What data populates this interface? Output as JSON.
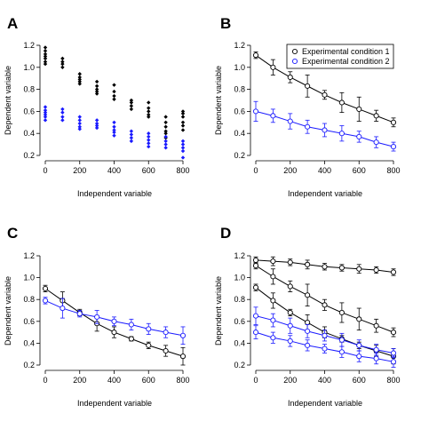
{
  "chart_data": [
    {
      "panel": "A",
      "type": "scatter",
      "xlabel": "Independent variable",
      "ylabel": "Dependent variable",
      "xlim": [
        0,
        800
      ],
      "ylim": [
        0.2,
        1.2
      ],
      "xticks": [
        0,
        200,
        400,
        600,
        800
      ],
      "yticks": [
        0.2,
        0.4,
        0.6,
        0.8,
        1.0,
        1.2
      ],
      "series": [
        {
          "color": "#000000",
          "points": [
            [
              0,
              1.18
            ],
            [
              0,
              1.15
            ],
            [
              0,
              1.12
            ],
            [
              0,
              1.1
            ],
            [
              0,
              1.08
            ],
            [
              0,
              1.05
            ],
            [
              0,
              1.03
            ],
            [
              100,
              1.08
            ],
            [
              100,
              1.05
            ],
            [
              100,
              1.03
            ],
            [
              100,
              1.0
            ],
            [
              200,
              0.94
            ],
            [
              200,
              0.91
            ],
            [
              200,
              0.89
            ],
            [
              200,
              0.87
            ],
            [
              200,
              0.85
            ],
            [
              300,
              0.87
            ],
            [
              300,
              0.83
            ],
            [
              300,
              0.8
            ],
            [
              300,
              0.78
            ],
            [
              300,
              0.76
            ],
            [
              400,
              0.84
            ],
            [
              400,
              0.78
            ],
            [
              400,
              0.74
            ],
            [
              400,
              0.71
            ],
            [
              500,
              0.7
            ],
            [
              500,
              0.68
            ],
            [
              500,
              0.65
            ],
            [
              500,
              0.62
            ],
            [
              600,
              0.68
            ],
            [
              600,
              0.63
            ],
            [
              600,
              0.6
            ],
            [
              600,
              0.57
            ],
            [
              600,
              0.55
            ],
            [
              700,
              0.55
            ],
            [
              700,
              0.5
            ],
            [
              700,
              0.46
            ],
            [
              700,
              0.42
            ],
            [
              700,
              0.4
            ],
            [
              700,
              0.36
            ],
            [
              800,
              0.6
            ],
            [
              800,
              0.58
            ],
            [
              800,
              0.55
            ],
            [
              800,
              0.5
            ],
            [
              800,
              0.47
            ],
            [
              800,
              0.43
            ]
          ]
        },
        {
          "color": "#1a1aff",
          "points": [
            [
              0,
              0.64
            ],
            [
              0,
              0.61
            ],
            [
              0,
              0.59
            ],
            [
              0,
              0.57
            ],
            [
              0,
              0.55
            ],
            [
              0,
              0.52
            ],
            [
              100,
              0.62
            ],
            [
              100,
              0.59
            ],
            [
              100,
              0.55
            ],
            [
              100,
              0.52
            ],
            [
              200,
              0.55
            ],
            [
              200,
              0.52
            ],
            [
              200,
              0.49
            ],
            [
              200,
              0.46
            ],
            [
              200,
              0.44
            ],
            [
              300,
              0.52
            ],
            [
              300,
              0.49
            ],
            [
              300,
              0.47
            ],
            [
              300,
              0.45
            ],
            [
              400,
              0.5
            ],
            [
              400,
              0.46
            ],
            [
              400,
              0.43
            ],
            [
              400,
              0.41
            ],
            [
              400,
              0.38
            ],
            [
              500,
              0.42
            ],
            [
              500,
              0.39
            ],
            [
              500,
              0.36
            ],
            [
              500,
              0.33
            ],
            [
              600,
              0.4
            ],
            [
              600,
              0.37
            ],
            [
              600,
              0.34
            ],
            [
              600,
              0.31
            ],
            [
              600,
              0.28
            ],
            [
              700,
              0.37
            ],
            [
              700,
              0.33
            ],
            [
              700,
              0.3
            ],
            [
              700,
              0.27
            ],
            [
              800,
              0.33
            ],
            [
              800,
              0.3
            ],
            [
              800,
              0.27
            ],
            [
              800,
              0.24
            ],
            [
              800,
              0.18
            ]
          ]
        }
      ]
    },
    {
      "panel": "B",
      "type": "line",
      "xlabel": "Independent variable",
      "ylabel": "Dependent variable",
      "xlim": [
        0,
        800
      ],
      "ylim": [
        0.2,
        1.2
      ],
      "xticks": [
        0,
        200,
        400,
        600,
        800
      ],
      "yticks": [
        0.2,
        0.4,
        0.6,
        0.8,
        1.0,
        1.2
      ],
      "legend": {
        "position": "top-right",
        "entries": [
          "Experimental condition 1",
          "Experimental condition 2"
        ]
      },
      "x": [
        0,
        100,
        200,
        300,
        400,
        500,
        600,
        700,
        800
      ],
      "series": [
        {
          "name": "Experimental condition 1",
          "color": "#000000",
          "values": [
            1.11,
            1.0,
            0.91,
            0.83,
            0.75,
            0.68,
            0.62,
            0.56,
            0.5
          ],
          "errors": [
            0.03,
            0.07,
            0.05,
            0.1,
            0.04,
            0.09,
            0.11,
            0.05,
            0.04
          ]
        },
        {
          "name": "Experimental condition 2",
          "color": "#1a1aff",
          "values": [
            0.6,
            0.56,
            0.51,
            0.46,
            0.43,
            0.4,
            0.37,
            0.32,
            0.28
          ],
          "errors": [
            0.09,
            0.06,
            0.07,
            0.06,
            0.06,
            0.07,
            0.05,
            0.05,
            0.04
          ]
        }
      ]
    },
    {
      "panel": "C",
      "type": "line",
      "xlabel": "Independent variable",
      "ylabel": "Dependent variable",
      "xlim": [
        0,
        800
      ],
      "ylim": [
        0.2,
        1.2
      ],
      "xticks": [
        0,
        200,
        400,
        600,
        800
      ],
      "yticks": [
        0.2,
        0.4,
        0.6,
        0.8,
        1.0,
        1.2
      ],
      "x": [
        0,
        100,
        200,
        300,
        400,
        500,
        600,
        700,
        800
      ],
      "series": [
        {
          "color": "#000000",
          "values": [
            0.9,
            0.79,
            0.68,
            0.58,
            0.5,
            0.44,
            0.38,
            0.33,
            0.28
          ],
          "errors": [
            0.03,
            0.08,
            0.03,
            0.07,
            0.05,
            0.02,
            0.03,
            0.05,
            0.08
          ]
        },
        {
          "color": "#1a1aff",
          "values": [
            0.79,
            0.72,
            0.67,
            0.64,
            0.6,
            0.57,
            0.53,
            0.5,
            0.47
          ],
          "errors": [
            0.03,
            0.09,
            0.03,
            0.06,
            0.04,
            0.05,
            0.05,
            0.05,
            0.08
          ]
        }
      ]
    },
    {
      "panel": "D",
      "type": "line",
      "xlabel": "Independent variable",
      "ylabel": "Dependent variable",
      "xlim": [
        0,
        800
      ],
      "ylim": [
        0.2,
        1.2
      ],
      "xticks": [
        0,
        200,
        400,
        600,
        800
      ],
      "yticks": [
        0.2,
        0.4,
        0.6,
        0.8,
        1.0,
        1.2
      ],
      "x": [
        0,
        100,
        200,
        300,
        400,
        500,
        600,
        700,
        800
      ],
      "series": [
        {
          "color": "#000000",
          "values": [
            1.16,
            1.15,
            1.14,
            1.12,
            1.1,
            1.09,
            1.08,
            1.07,
            1.05
          ],
          "errors": [
            0.03,
            0.04,
            0.03,
            0.04,
            0.03,
            0.03,
            0.04,
            0.03,
            0.03
          ]
        },
        {
          "color": "#000000",
          "values": [
            1.11,
            1.01,
            0.92,
            0.84,
            0.75,
            0.68,
            0.62,
            0.56,
            0.5
          ],
          "errors": [
            0.03,
            0.07,
            0.05,
            0.1,
            0.05,
            0.09,
            0.1,
            0.06,
            0.04
          ]
        },
        {
          "color": "#000000",
          "values": [
            0.91,
            0.79,
            0.68,
            0.59,
            0.5,
            0.44,
            0.38,
            0.33,
            0.28
          ],
          "errors": [
            0.03,
            0.07,
            0.03,
            0.07,
            0.05,
            0.03,
            0.03,
            0.05,
            0.07
          ]
        },
        {
          "color": "#1a1aff",
          "values": [
            0.65,
            0.61,
            0.56,
            0.51,
            0.47,
            0.43,
            0.38,
            0.34,
            0.31
          ],
          "errors": [
            0.08,
            0.06,
            0.07,
            0.06,
            0.05,
            0.06,
            0.05,
            0.05,
            0.04
          ]
        },
        {
          "color": "#1a1aff",
          "values": [
            0.5,
            0.45,
            0.42,
            0.38,
            0.35,
            0.32,
            0.28,
            0.26,
            0.23
          ],
          "errors": [
            0.06,
            0.05,
            0.05,
            0.05,
            0.04,
            0.05,
            0.05,
            0.05,
            0.05
          ]
        }
      ]
    }
  ]
}
